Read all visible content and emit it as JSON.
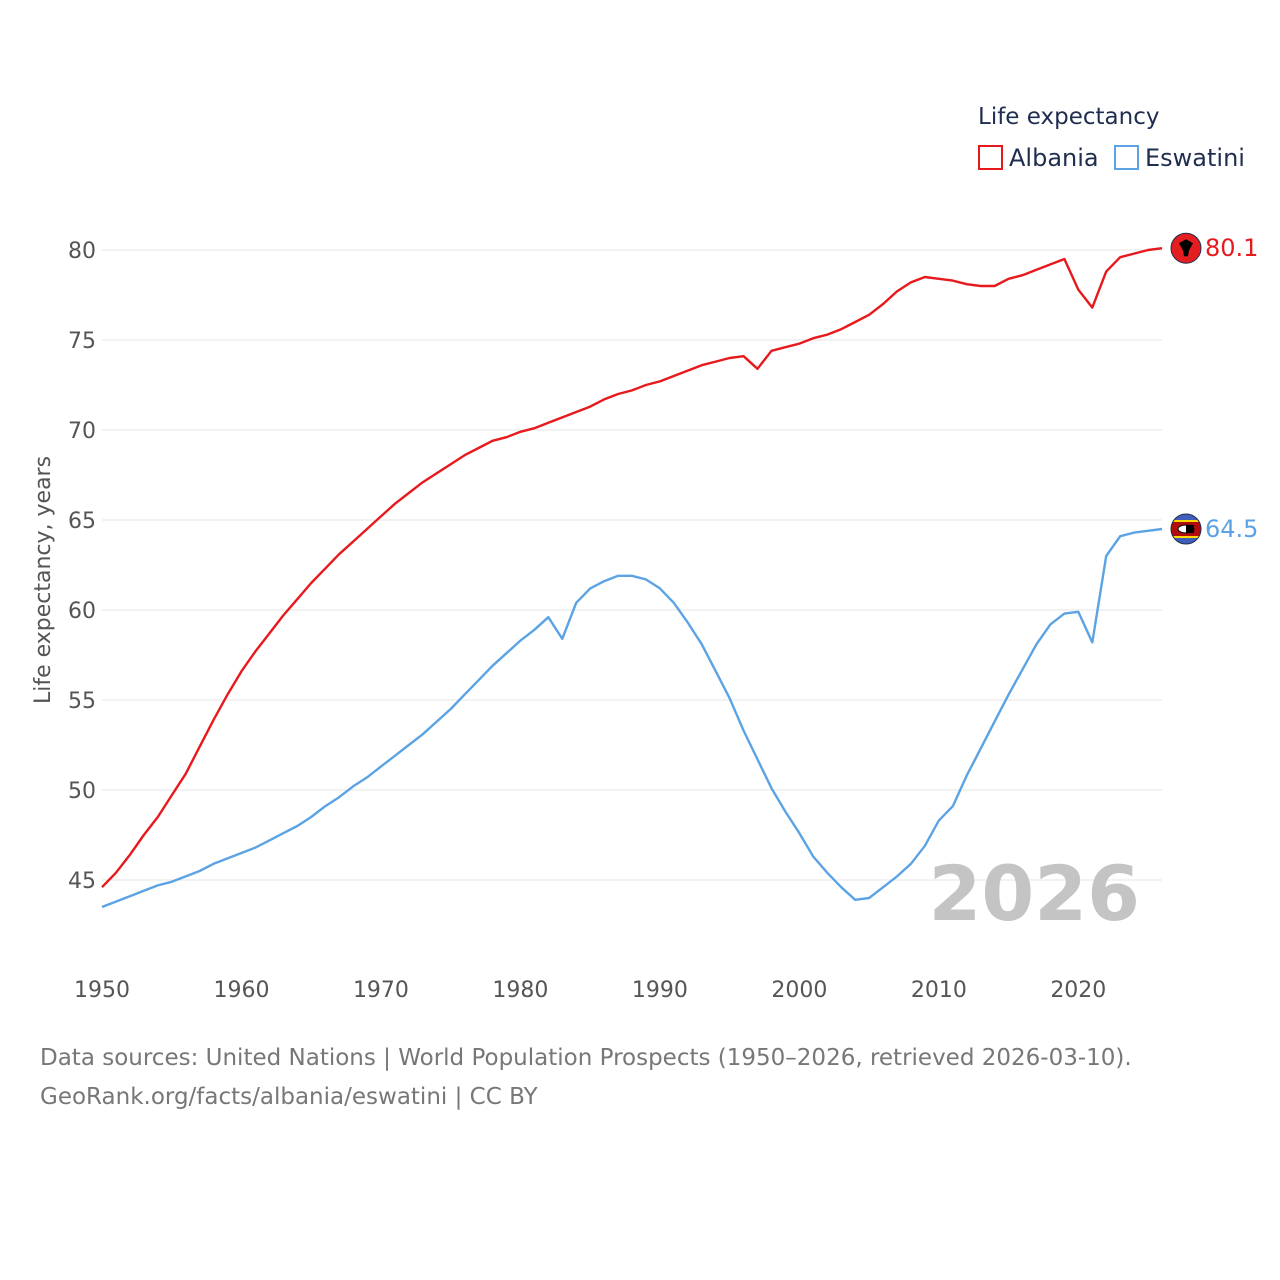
{
  "chart_data": {
    "type": "line",
    "legend_title": "Life expectancy",
    "ylabel": "Life expectancy, years",
    "xlabel": "",
    "xlim": [
      1950,
      2026
    ],
    "ylim": [
      42,
      83
    ],
    "x_ticks": [
      1950,
      1960,
      1970,
      1980,
      1990,
      2000,
      2010,
      2020
    ],
    "y_ticks": [
      45,
      50,
      55,
      60,
      65,
      70,
      75,
      80
    ],
    "year_watermark": "2026",
    "legend_placement": "top-right",
    "series": [
      {
        "name": "Albania",
        "color": "#e8191c",
        "end_label": "80.1",
        "points": [
          [
            1950,
            44.6
          ],
          [
            1951,
            45.4
          ],
          [
            1952,
            46.4
          ],
          [
            1953,
            47.5
          ],
          [
            1954,
            48.5
          ],
          [
            1955,
            49.7
          ],
          [
            1956,
            50.9
          ],
          [
            1957,
            52.4
          ],
          [
            1958,
            53.9
          ],
          [
            1959,
            55.3
          ],
          [
            1960,
            56.6
          ],
          [
            1961,
            57.7
          ],
          [
            1962,
            58.7
          ],
          [
            1963,
            59.7
          ],
          [
            1964,
            60.6
          ],
          [
            1965,
            61.5
          ],
          [
            1966,
            62.3
          ],
          [
            1967,
            63.1
          ],
          [
            1968,
            63.8
          ],
          [
            1969,
            64.5
          ],
          [
            1970,
            65.2
          ],
          [
            1971,
            65.9
          ],
          [
            1972,
            66.5
          ],
          [
            1973,
            67.1
          ],
          [
            1974,
            67.6
          ],
          [
            1975,
            68.1
          ],
          [
            1976,
            68.6
          ],
          [
            1977,
            69.0
          ],
          [
            1978,
            69.4
          ],
          [
            1979,
            69.6
          ],
          [
            1980,
            69.9
          ],
          [
            1981,
            70.1
          ],
          [
            1982,
            70.4
          ],
          [
            1983,
            70.7
          ],
          [
            1984,
            71.0
          ],
          [
            1985,
            71.3
          ],
          [
            1986,
            71.7
          ],
          [
            1987,
            72.0
          ],
          [
            1988,
            72.2
          ],
          [
            1989,
            72.5
          ],
          [
            1990,
            72.7
          ],
          [
            1991,
            73.0
          ],
          [
            1992,
            73.3
          ],
          [
            1993,
            73.6
          ],
          [
            1994,
            73.8
          ],
          [
            1995,
            74.0
          ],
          [
            1996,
            74.1
          ],
          [
            1997,
            73.4
          ],
          [
            1998,
            74.4
          ],
          [
            1999,
            74.6
          ],
          [
            2000,
            74.8
          ],
          [
            2001,
            75.1
          ],
          [
            2002,
            75.3
          ],
          [
            2003,
            75.6
          ],
          [
            2004,
            76.0
          ],
          [
            2005,
            76.4
          ],
          [
            2006,
            77.0
          ],
          [
            2007,
            77.7
          ],
          [
            2008,
            78.2
          ],
          [
            2009,
            78.5
          ],
          [
            2010,
            78.4
          ],
          [
            2011,
            78.3
          ],
          [
            2012,
            78.1
          ],
          [
            2013,
            78.0
          ],
          [
            2014,
            78.0
          ],
          [
            2015,
            78.4
          ],
          [
            2016,
            78.6
          ],
          [
            2017,
            78.9
          ],
          [
            2018,
            79.2
          ],
          [
            2019,
            79.5
          ],
          [
            2020,
            77.8
          ],
          [
            2021,
            76.8
          ],
          [
            2022,
            78.8
          ],
          [
            2023,
            79.6
          ],
          [
            2024,
            79.8
          ],
          [
            2025,
            80.0
          ],
          [
            2026,
            80.1
          ]
        ]
      },
      {
        "name": "Eswatini",
        "color": "#5ba3e4",
        "end_label": "64.5",
        "points": [
          [
            1950,
            43.5
          ],
          [
            1951,
            43.8
          ],
          [
            1952,
            44.1
          ],
          [
            1953,
            44.4
          ],
          [
            1954,
            44.7
          ],
          [
            1955,
            44.9
          ],
          [
            1956,
            45.2
          ],
          [
            1957,
            45.5
          ],
          [
            1958,
            45.9
          ],
          [
            1959,
            46.2
          ],
          [
            1960,
            46.5
          ],
          [
            1961,
            46.8
          ],
          [
            1962,
            47.2
          ],
          [
            1963,
            47.6
          ],
          [
            1964,
            48.0
          ],
          [
            1965,
            48.5
          ],
          [
            1966,
            49.1
          ],
          [
            1967,
            49.6
          ],
          [
            1968,
            50.2
          ],
          [
            1969,
            50.7
          ],
          [
            1970,
            51.3
          ],
          [
            1971,
            51.9
          ],
          [
            1972,
            52.5
          ],
          [
            1973,
            53.1
          ],
          [
            1974,
            53.8
          ],
          [
            1975,
            54.5
          ],
          [
            1976,
            55.3
          ],
          [
            1977,
            56.1
          ],
          [
            1978,
            56.9
          ],
          [
            1979,
            57.6
          ],
          [
            1980,
            58.3
          ],
          [
            1981,
            58.9
          ],
          [
            1982,
            59.6
          ],
          [
            1983,
            58.4
          ],
          [
            1984,
            60.4
          ],
          [
            1985,
            61.2
          ],
          [
            1986,
            61.6
          ],
          [
            1987,
            61.9
          ],
          [
            1988,
            61.9
          ],
          [
            1989,
            61.7
          ],
          [
            1990,
            61.2
          ],
          [
            1991,
            60.4
          ],
          [
            1992,
            59.3
          ],
          [
            1993,
            58.1
          ],
          [
            1994,
            56.6
          ],
          [
            1995,
            55.1
          ],
          [
            1996,
            53.3
          ],
          [
            1997,
            51.7
          ],
          [
            1998,
            50.1
          ],
          [
            1999,
            48.8
          ],
          [
            2000,
            47.6
          ],
          [
            2001,
            46.3
          ],
          [
            2002,
            45.4
          ],
          [
            2003,
            44.6
          ],
          [
            2004,
            43.9
          ],
          [
            2005,
            44.0
          ],
          [
            2006,
            44.6
          ],
          [
            2007,
            45.2
          ],
          [
            2008,
            45.9
          ],
          [
            2009,
            46.9
          ],
          [
            2010,
            48.3
          ],
          [
            2011,
            49.1
          ],
          [
            2012,
            50.8
          ],
          [
            2013,
            52.3
          ],
          [
            2014,
            53.8
          ],
          [
            2015,
            55.3
          ],
          [
            2016,
            56.7
          ],
          [
            2017,
            58.1
          ],
          [
            2018,
            59.2
          ],
          [
            2019,
            59.8
          ],
          [
            2020,
            59.9
          ],
          [
            2021,
            58.2
          ],
          [
            2022,
            63.0
          ],
          [
            2023,
            64.1
          ],
          [
            2024,
            64.3
          ],
          [
            2025,
            64.4
          ],
          [
            2026,
            64.5
          ]
        ]
      }
    ]
  },
  "footer": {
    "sources": "Data sources: United Nations | World Population Prospects (1950–2026, retrieved 2026-03-10).",
    "credit": "GeoRank.org/facts/albania/eswatini | CC BY"
  }
}
